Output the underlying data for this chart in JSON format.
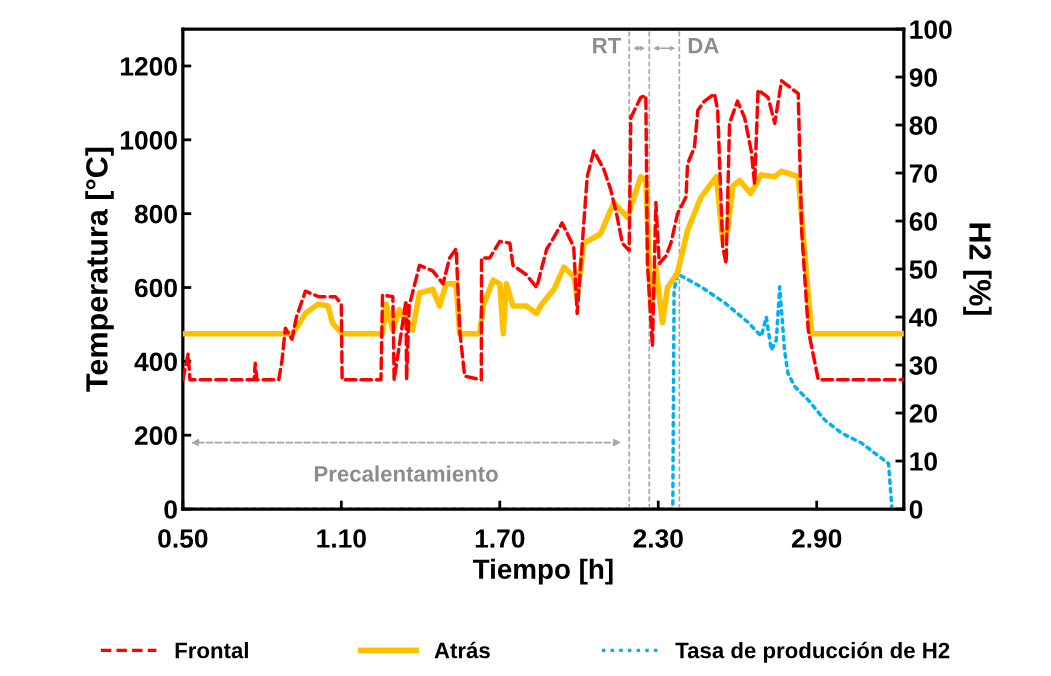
{
  "chart_data": {
    "type": "line",
    "xlabel": "Tiempo [h]",
    "ylabel": "Temperatura [°C]",
    "y2label": "H2 [%]",
    "xlim": [
      0.5,
      3.23
    ],
    "xticks": [
      {
        "value": 0.5,
        "label": "0.50"
      },
      {
        "value": 1.1,
        "label": "1.10"
      },
      {
        "value": 1.7,
        "label": "1.70"
      },
      {
        "value": 2.3,
        "label": "2.30"
      },
      {
        "value": 2.9,
        "label": "2.90"
      }
    ],
    "ylim": [
      0,
      1300
    ],
    "yticks": [
      0,
      200,
      400,
      600,
      800,
      1000,
      1200
    ],
    "y2lim": [
      0,
      100
    ],
    "y2ticks": [
      0,
      10,
      20,
      30,
      40,
      50,
      60,
      70,
      80,
      90,
      100
    ],
    "grid": false,
    "legend": "bottom",
    "marker": "none",
    "series": [
      {
        "name": "Frontal",
        "color": "#ff0000",
        "line_style": "dashed",
        "x": [
          0.5,
          0.52,
          0.527,
          0.77,
          0.774,
          0.78,
          0.863,
          0.875,
          0.888,
          0.913,
          0.93,
          0.964,
          1.015,
          1.078,
          1.1,
          1.103,
          1.21,
          1.25,
          1.256,
          1.295,
          1.3,
          1.345,
          1.347,
          1.357,
          1.396,
          1.446,
          1.485,
          1.51,
          1.535,
          1.548,
          1.567,
          1.63,
          1.631,
          1.662,
          1.7,
          1.738,
          1.75,
          1.8,
          1.84,
          1.854,
          1.878,
          1.892,
          1.936,
          1.98,
          1.993,
          2.031,
          2.056,
          2.094,
          2.12,
          2.145,
          2.164,
          2.19,
          2.196,
          2.234,
          2.253,
          2.259,
          2.278,
          2.291,
          2.304,
          2.329,
          2.348,
          2.373,
          2.405,
          2.411,
          2.437,
          2.45,
          2.475,
          2.513,
          2.525,
          2.544,
          2.557,
          2.57,
          2.6,
          2.627,
          2.652,
          2.665,
          2.678,
          2.716,
          2.741,
          2.767,
          2.83,
          2.843,
          2.868,
          2.906,
          3.23
        ],
        "values": [
          350,
          420,
          350,
          350,
          395,
          350,
          350,
          400,
          490,
          460,
          520,
          590,
          575,
          575,
          555,
          350,
          350,
          350,
          580,
          575,
          350,
          565,
          350,
          550,
          660,
          645,
          610,
          680,
          705,
          485,
          360,
          350,
          680,
          680,
          725,
          720,
          660,
          635,
          600,
          640,
          705,
          720,
          775,
          710,
          530,
          900,
          970,
          920,
          865,
          790,
          720,
          700,
          1060,
          1115,
          1120,
          665,
          440,
          830,
          665,
          685,
          720,
          800,
          845,
          935,
          980,
          1080,
          1105,
          1125,
          1080,
          710,
          665,
          1045,
          1105,
          1060,
          970,
          880,
          1135,
          1115,
          1045,
          1160,
          1125,
          755,
          485,
          350,
          350
        ]
      },
      {
        "name": "Atrás",
        "color": "#ffc000",
        "line_style": "solid",
        "x": [
          0.5,
          0.913,
          0.93,
          0.964,
          1.012,
          1.05,
          1.066,
          1.09,
          1.103,
          1.256,
          1.27,
          1.295,
          1.32,
          1.37,
          1.396,
          1.446,
          1.472,
          1.497,
          1.535,
          1.548,
          1.624,
          1.637,
          1.675,
          1.7,
          1.713,
          1.725,
          1.75,
          1.8,
          1.84,
          1.854,
          1.905,
          1.943,
          1.98,
          1.993,
          2.018,
          2.081,
          2.132,
          2.183,
          2.234,
          2.253,
          2.272,
          2.291,
          2.316,
          2.335,
          2.373,
          2.411,
          2.462,
          2.52,
          2.544,
          2.563,
          2.583,
          2.608,
          2.65,
          2.69,
          2.741,
          2.767,
          2.83,
          2.881,
          3.23
        ],
        "values": [
          475,
          475,
          490,
          530,
          555,
          550,
          505,
          485,
          475,
          475,
          555,
          485,
          540,
          485,
          585,
          595,
          550,
          610,
          610,
          475,
          475,
          550,
          620,
          610,
          475,
          610,
          550,
          550,
          530,
          550,
          595,
          655,
          630,
          575,
          720,
          745,
          830,
          790,
          900,
          890,
          550,
          655,
          505,
          600,
          640,
          755,
          845,
          900,
          730,
          755,
          875,
          890,
          855,
          905,
          900,
          915,
          900,
          475,
          475
        ]
      },
      {
        "name": "Tasa de producción de H2",
        "color": "#00b0f0",
        "line_style": "dotted",
        "axis": "y2",
        "x": [
          0.5,
          2.355,
          2.36,
          2.373,
          2.462,
          2.551,
          2.64,
          2.69,
          2.709,
          2.728,
          2.747,
          2.76,
          2.778,
          2.791,
          2.817,
          2.868,
          2.931,
          2.995,
          3.071,
          3.121,
          3.172,
          3.185,
          3.23
        ],
        "values": [
          0,
          0,
          45.6,
          49,
          46.3,
          43,
          38.9,
          36,
          40,
          33.1,
          35.2,
          46.3,
          33.1,
          28.3,
          25.5,
          22.7,
          18.5,
          15.8,
          13.7,
          11.6,
          9.5,
          0,
          0
        ]
      }
    ],
    "ref_lines": [
      {
        "axis": "x",
        "value": 2.19,
        "color": "#a6a6a6",
        "line_style": "dashed"
      },
      {
        "axis": "x",
        "value": 2.266,
        "color": "#a6a6a6",
        "line_style": "dashed"
      },
      {
        "axis": "x",
        "value": 2.38,
        "color": "#a6a6a6",
        "line_style": "dashed"
      }
    ],
    "annotations": [
      "Precalentamiento",
      "RT",
      "DA"
    ]
  }
}
